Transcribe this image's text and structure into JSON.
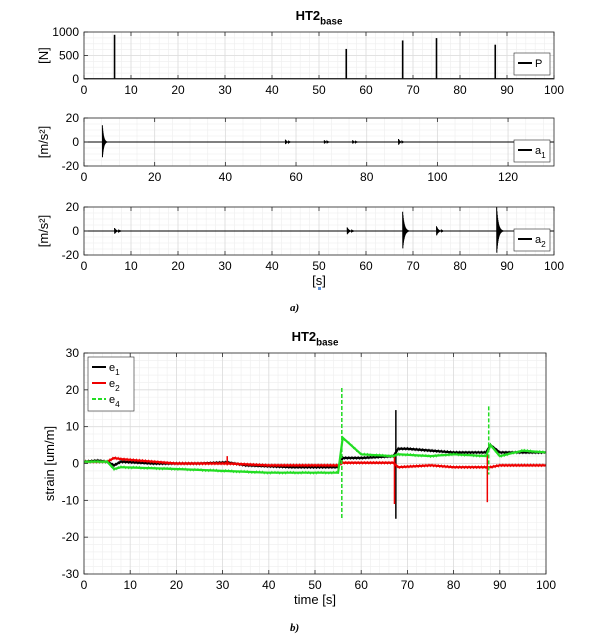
{
  "figure": {
    "caption_a": "a)",
    "caption_b": "b)"
  },
  "chart_data": [
    {
      "type": "line",
      "title": "HT2",
      "title_sub": "base",
      "xlabel": "",
      "ylabel": "[N]",
      "xlim": [
        0,
        100
      ],
      "ylim": [
        0,
        1000
      ],
      "xticks": [
        0,
        10,
        20,
        30,
        40,
        50,
        60,
        70,
        80,
        90,
        100
      ],
      "yticks": [
        0,
        500,
        1000
      ],
      "grid": true,
      "legend": {
        "position": "bottom-right"
      },
      "series": [
        {
          "name": "P",
          "name_sub": "",
          "color": "#000000",
          "impulses": [
            [
              6.5,
              940
            ],
            [
              55.8,
              640
            ],
            [
              67.8,
              820
            ],
            [
              75.0,
              870
            ],
            [
              87.5,
              730
            ]
          ]
        }
      ]
    },
    {
      "type": "line",
      "title": "",
      "xlabel": "",
      "ylabel": "[m/s²]",
      "xlim": [
        0,
        133
      ],
      "ylim": [
        -20,
        20
      ],
      "xticks": [
        0,
        20,
        40,
        60,
        80,
        100,
        120
      ],
      "yticks": [
        -20,
        0,
        20
      ],
      "grid": true,
      "legend": {
        "position": "bottom-right"
      },
      "series": [
        {
          "name": "a",
          "name_sub": "1",
          "color": "#000000",
          "bursts": [
            [
              5.2,
              14
            ],
            [
              57.0,
              2
            ],
            [
              68.0,
              1.5
            ],
            [
              76.0,
              1.5
            ],
            [
              89.0,
              2.5
            ]
          ]
        }
      ]
    },
    {
      "type": "line",
      "title": "",
      "xlabel": "[s]",
      "ylabel": "[m/s²]",
      "xlim": [
        0,
        100
      ],
      "ylim": [
        -20,
        20
      ],
      "xticks": [
        0,
        10,
        20,
        30,
        40,
        50,
        60,
        70,
        80,
        90,
        100
      ],
      "yticks": [
        -20,
        0,
        20
      ],
      "grid": true,
      "legend": {
        "position": "bottom-right"
      },
      "series": [
        {
          "name": "a",
          "name_sub": "2",
          "color": "#000000",
          "bursts": [
            [
              6.5,
              2.5
            ],
            [
              56.0,
              3
            ],
            [
              67.8,
              16
            ],
            [
              75.0,
              4
            ],
            [
              87.8,
              20
            ]
          ]
        }
      ]
    },
    {
      "type": "line",
      "title": "HT2",
      "title_sub": "base",
      "xlabel": "time [s]",
      "ylabel": "strain [um/m]",
      "xlim": [
        0,
        100
      ],
      "ylim": [
        -30,
        30
      ],
      "xticks": [
        0,
        10,
        20,
        30,
        40,
        50,
        60,
        70,
        80,
        90,
        100
      ],
      "yticks": [
        -30,
        -20,
        -10,
        0,
        10,
        20,
        30
      ],
      "grid": true,
      "legend": {
        "position": "top-left"
      },
      "series": [
        {
          "name": "e",
          "name_sub": "1",
          "color": "#000000",
          "dash": false,
          "x": [
            0,
            3,
            5,
            6.5,
            8,
            15,
            25,
            31,
            35,
            45,
            55,
            56,
            60,
            67,
            68,
            70,
            75,
            80,
            87,
            88,
            90,
            95,
            100
          ],
          "y": [
            0.5,
            0.8,
            0.5,
            -0.5,
            0.5,
            0,
            0,
            0.3,
            -0.5,
            -1,
            -1,
            1.5,
            1.5,
            2,
            4,
            4,
            3.5,
            3,
            3,
            5,
            3,
            3,
            3
          ],
          "spikes": [
            [
              67.5,
              14.5,
              -15
            ]
          ]
        },
        {
          "name": "e",
          "name_sub": "2",
          "color": "#ee0000",
          "dash": false,
          "x": [
            0,
            5,
            6.5,
            8,
            12,
            20,
            31,
            40,
            55,
            56,
            60,
            67,
            68,
            75,
            80,
            87,
            88,
            90,
            100
          ],
          "y": [
            0.5,
            0.5,
            1.5,
            1.2,
            0.8,
            0,
            0,
            -0.5,
            -0.5,
            0.2,
            0.2,
            0.2,
            -1,
            -0.5,
            -1,
            -1,
            -1,
            -0.5,
            -0.5
          ],
          "spikes": [
            [
              67.2,
              2,
              -11
            ],
            [
              87.3,
              3,
              -10.5
            ],
            [
              31.0,
              2,
              -0.5
            ]
          ]
        },
        {
          "name": "e",
          "name_sub": "4",
          "color": "#22dd22",
          "dash": true,
          "x": [
            0,
            5,
            6.5,
            8,
            20,
            30,
            40,
            55,
            56,
            60,
            67,
            68,
            75,
            80,
            87,
            88,
            90,
            95,
            100
          ],
          "y": [
            0.5,
            0.5,
            -1.5,
            -1,
            -1.5,
            -2,
            -2.5,
            -2.5,
            7,
            2.5,
            2,
            2.5,
            2,
            2.5,
            2,
            5,
            2,
            3.5,
            3
          ],
          "spikes": [
            [
              55.8,
              20.5,
              -15
            ],
            [
              87.6,
              15.5,
              -3
            ]
          ]
        }
      ]
    }
  ]
}
